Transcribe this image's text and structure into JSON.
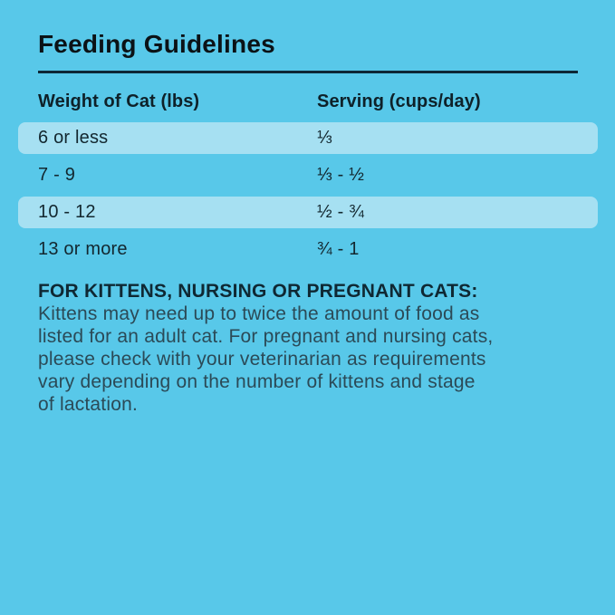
{
  "panel": {
    "title": "Feeding Guidelines",
    "table": {
      "columns": [
        "Weight of Cat (lbs)",
        "Serving (cups/day)"
      ],
      "rows": [
        {
          "weight": "6 or less",
          "serving": "⅓",
          "highlighted": true
        },
        {
          "weight": "7 - 9",
          "serving": "⅓ - ½",
          "highlighted": false
        },
        {
          "weight": "10 - 12",
          "serving": "½ - ¾",
          "highlighted": true
        },
        {
          "weight": "13 or more",
          "serving": "¾ - 1",
          "highlighted": false
        }
      ]
    },
    "note": {
      "heading": "FOR KITTENS, NURSING OR PREGNANT CATS:",
      "lines": [
        "Kittens may need up to twice the amount of food as",
        "listed for an adult cat. For pregnant and nursing cats,",
        "please check with your veterinarian as requirements",
        "vary depending on the number of kittens and stage",
        "of lactation."
      ]
    },
    "colors": {
      "background": "#58C8E9",
      "row_highlight": "#A6E0F2",
      "title_text": "#0B1216",
      "rule": "#0D2836",
      "row_text": "#13272F",
      "note_heading_text": "#0F2833",
      "note_body_text": "#2B4A57"
    }
  }
}
